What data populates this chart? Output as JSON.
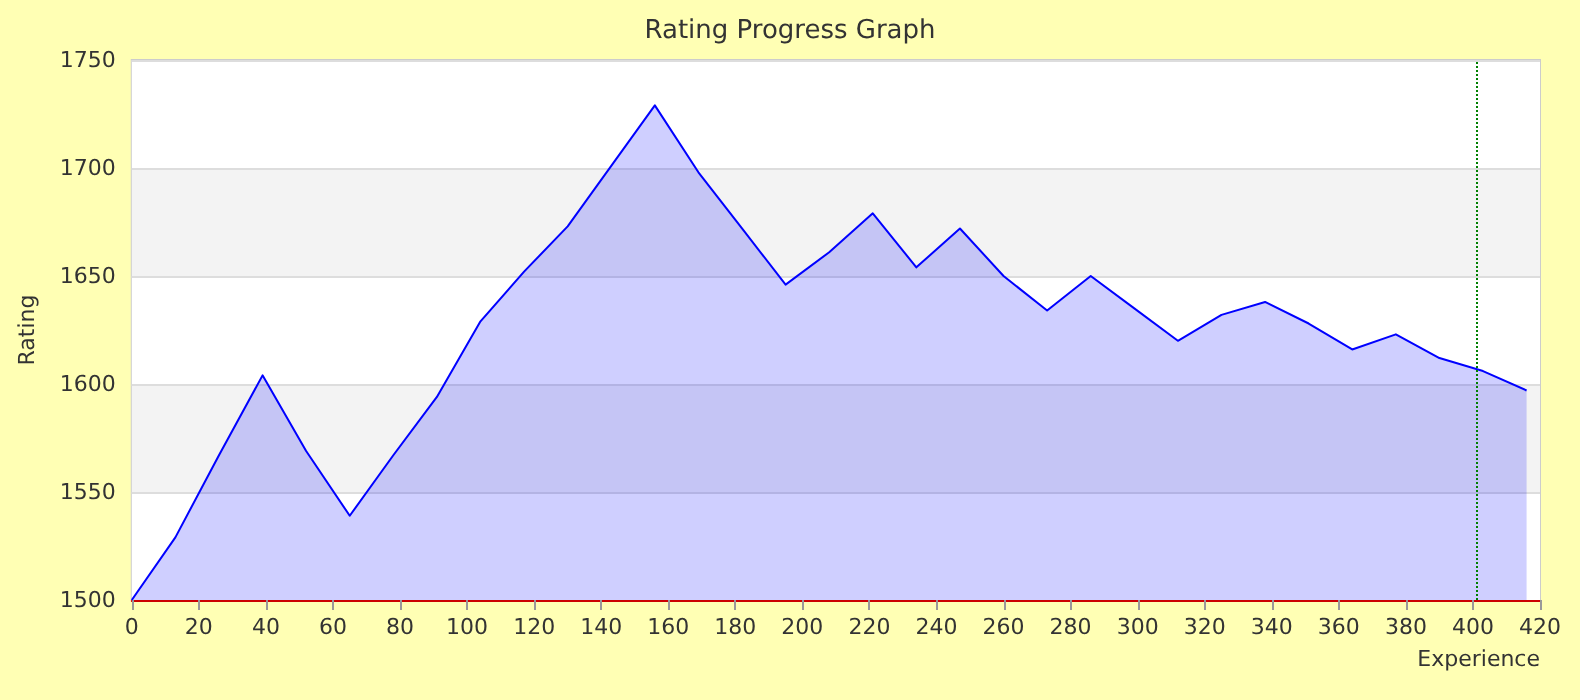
{
  "chart_data": {
    "type": "area",
    "title": "Rating Progress Graph",
    "xlabel": "Experience",
    "ylabel": "Rating",
    "x": [
      0,
      13,
      26,
      39,
      52,
      65,
      78,
      91,
      104,
      117,
      130,
      143,
      156,
      169,
      182,
      195,
      208,
      221,
      234,
      247,
      260,
      273,
      286,
      299,
      312,
      325,
      338,
      351,
      364,
      377,
      390,
      403,
      416
    ],
    "series": [
      {
        "color": "#0000ff",
        "values": [
          1500,
          1529,
          1567,
          1604,
          1569,
          1539,
          1567,
          1594,
          1629,
          1652,
          1673,
          1701,
          1729,
          1698,
          1672,
          1646,
          1661,
          1679,
          1654,
          1672,
          1650,
          1634,
          1650,
          1635,
          1620,
          1632,
          1638,
          1628,
          1616,
          1623,
          1612,
          1606,
          1597
        ]
      }
    ],
    "xlim": [
      0,
      420
    ],
    "xticks": [
      0,
      20,
      40,
      60,
      80,
      100,
      120,
      140,
      160,
      180,
      200,
      220,
      240,
      260,
      280,
      300,
      320,
      340,
      360,
      380,
      400,
      420
    ],
    "ylim": [
      1500,
      1750
    ],
    "yticks": [
      1500,
      1550,
      1600,
      1650,
      1700,
      1750
    ],
    "grid": "y",
    "marker": "none",
    "ref_lines": [
      {
        "axis": "x",
        "value": 401,
        "color": "#008000",
        "line_style": "dotted"
      }
    ]
  }
}
